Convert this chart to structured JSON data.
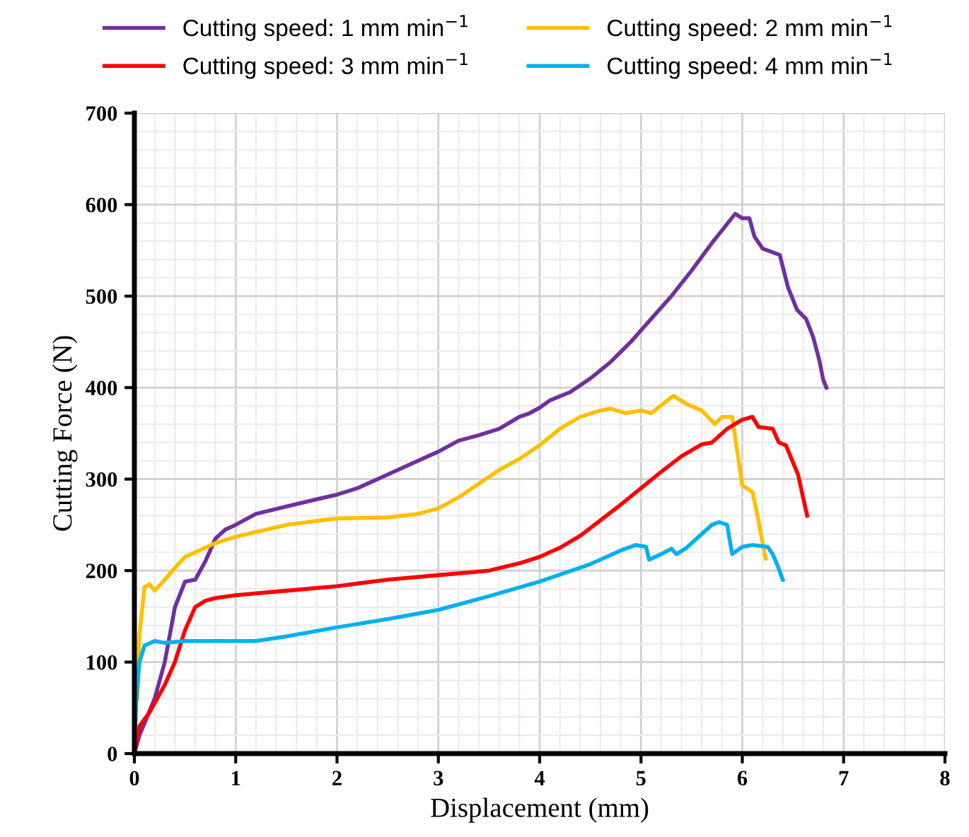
{
  "chart_data": {
    "type": "line",
    "xlabel": "Displacement (mm)",
    "ylabel": "Cutting Force (N)",
    "xlim": [
      0,
      8
    ],
    "xticks": [
      0,
      1,
      2,
      3,
      4,
      5,
      6,
      7,
      8
    ],
    "ylim": [
      0,
      700
    ],
    "yticks": [
      0,
      100,
      200,
      300,
      400,
      500,
      600,
      700
    ],
    "grid": true,
    "legend": "top",
    "marker": "none",
    "line_style": "solid",
    "series": [
      {
        "name": "Cutting speed: 1 mm min$^{−1}$",
        "color": "#7030a0",
        "x": [
          0,
          0.05,
          0.2,
          0.3,
          0.4,
          0.5,
          0.6,
          0.7,
          0.8,
          0.9,
          1.0,
          1.2,
          1.5,
          1.8,
          2.0,
          2.2,
          2.4,
          2.6,
          2.8,
          3.0,
          3.2,
          3.4,
          3.6,
          3.8,
          3.9,
          4.0,
          4.1,
          4.3,
          4.5,
          4.7,
          4.9,
          5.1,
          5.3,
          5.5,
          5.7,
          5.93,
          6.0,
          6.07,
          6.12,
          6.2,
          6.37,
          6.45,
          6.54,
          6.63,
          6.7,
          6.76,
          6.8,
          6.83
        ],
        "values": [
          0,
          20,
          60,
          100,
          160,
          188,
          190,
          210,
          235,
          245,
          250,
          262,
          270,
          278,
          283,
          290,
          300,
          310,
          320,
          330,
          342,
          348,
          355,
          368,
          372,
          378,
          386,
          395,
          410,
          428,
          450,
          475,
          500,
          528,
          558,
          590,
          585,
          585,
          565,
          552,
          545,
          510,
          485,
          475,
          455,
          430,
          408,
          400
        ]
      },
      {
        "name": "Cutting speed: 2 mm min$^{−1}$",
        "color": "#ffc000",
        "x": [
          0.03,
          0.05,
          0.1,
          0.15,
          0.2,
          0.3,
          0.4,
          0.5,
          0.7,
          0.8,
          1.0,
          1.5,
          2.0,
          2.5,
          2.8,
          3.0,
          3.2,
          3.4,
          3.6,
          3.8,
          4.0,
          4.2,
          4.4,
          4.6,
          4.7,
          4.85,
          5.0,
          5.1,
          5.32,
          5.45,
          5.6,
          5.73,
          5.8,
          5.9,
          6.0,
          6.1,
          6.15,
          6.23
        ],
        "values": [
          60,
          130,
          182,
          185,
          178,
          190,
          203,
          215,
          225,
          230,
          237,
          250,
          257,
          258,
          262,
          268,
          280,
          295,
          310,
          322,
          337,
          355,
          368,
          375,
          377,
          372,
          375,
          372,
          391,
          382,
          375,
          360,
          368,
          368,
          293,
          286,
          260,
          213
        ]
      },
      {
        "name": "Cutting speed: 3 mm min$^{−1}$",
        "color": "#ff0000",
        "x": [
          0,
          0.05,
          0.15,
          0.3,
          0.4,
          0.5,
          0.6,
          0.7,
          0.8,
          1.0,
          1.5,
          2.0,
          2.5,
          3.0,
          3.5,
          3.8,
          4.0,
          4.2,
          4.4,
          4.6,
          4.8,
          5.0,
          5.2,
          5.4,
          5.6,
          5.7,
          5.85,
          6.0,
          6.1,
          6.16,
          6.3,
          6.36,
          6.43,
          6.55,
          6.64
        ],
        "values": [
          0,
          30,
          45,
          75,
          100,
          135,
          160,
          167,
          170,
          173,
          178,
          183,
          190,
          195,
          200,
          208,
          215,
          225,
          238,
          255,
          272,
          290,
          308,
          325,
          338,
          340,
          355,
          365,
          368,
          357,
          355,
          340,
          337,
          305,
          260
        ]
      },
      {
        "name": "Cutting speed: 4 mm min$^{−1}$",
        "color": "#00b0f0",
        "x": [
          0,
          0.02,
          0.05,
          0.1,
          0.2,
          0.3,
          0.5,
          1.0,
          1.2,
          1.5,
          2.0,
          2.5,
          3.0,
          3.5,
          4.0,
          4.5,
          4.8,
          4.95,
          5.05,
          5.08,
          5.2,
          5.3,
          5.35,
          5.45,
          5.6,
          5.7,
          5.77,
          5.85,
          5.9,
          6.0,
          6.1,
          6.25,
          6.3,
          6.35,
          6.4
        ],
        "values": [
          0,
          60,
          100,
          118,
          123,
          121,
          123,
          123,
          123,
          128,
          138,
          147,
          157,
          172,
          188,
          207,
          222,
          228,
          226,
          212,
          218,
          224,
          218,
          225,
          240,
          250,
          253,
          250,
          218,
          226,
          228,
          226,
          218,
          205,
          190
        ]
      }
    ]
  }
}
